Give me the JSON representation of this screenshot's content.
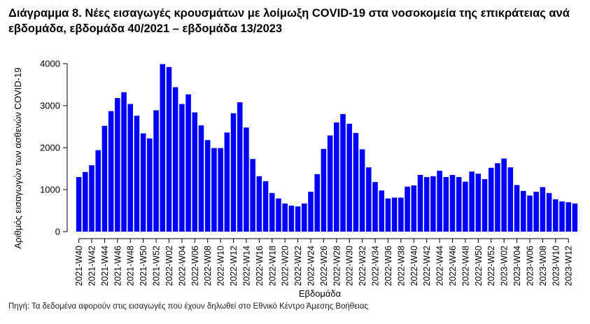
{
  "chart_data": {
    "type": "bar",
    "title": "Διάγραμμα 8. Νέες εισαγωγές κρουσμάτων με λοίμωξη COVID-19 στα νοσοκομεία της επικράτειας ανά εβδομάδα, εβδομάδα 40/2021 – εβδομάδα 13/2023",
    "xlabel": "Εβδομάδα",
    "ylabel": "Αριθμός εισαγωγών των ασθενών COVID-19",
    "ylim": [
      0,
      4000
    ],
    "yticks": [
      0,
      1000,
      2000,
      3000,
      4000
    ],
    "tick_categories": [
      "2021-W40",
      "2021-W42",
      "2021-W44",
      "2021-W46",
      "2021-W48",
      "2021-W50",
      "2021-W52",
      "2022-W02",
      "2022-W04",
      "2022-W06",
      "2022-W08",
      "2022-W10",
      "2022-W12",
      "2022-W14",
      "2022-W16",
      "2022-W18",
      "2022-W20",
      "2022-W22",
      "2022-W24",
      "2022-W26",
      "2022-W28",
      "2022-W30",
      "2022-W32",
      "2022-W34",
      "2022-W36",
      "2022-W38",
      "2022-W40",
      "2022-W42",
      "2022-W44",
      "2022-W46",
      "2022-W48",
      "2022-W50",
      "2022-W52",
      "2023-W02",
      "2023-W04",
      "2023-W06",
      "2023-W08",
      "2023-W10",
      "2023-W12"
    ],
    "values": [
      1300,
      1420,
      1580,
      1940,
      2520,
      2870,
      3180,
      3320,
      3040,
      2760,
      2340,
      2220,
      2890,
      3990,
      3920,
      3440,
      3040,
      3270,
      2840,
      2530,
      2180,
      1990,
      1990,
      2360,
      2820,
      3080,
      2480,
      1730,
      1320,
      1200,
      920,
      790,
      670,
      620,
      600,
      670,
      950,
      1370,
      1970,
      2290,
      2600,
      2800,
      2570,
      2350,
      1960,
      1530,
      1180,
      980,
      790,
      810,
      810,
      1070,
      1100,
      1350,
      1300,
      1320,
      1450,
      1300,
      1350,
      1300,
      1190,
      1430,
      1380,
      1250,
      1520,
      1630,
      1740,
      1530,
      1110,
      970,
      860,
      950,
      1060,
      920,
      770,
      720,
      700,
      670
    ],
    "bar_color": "#0000ff",
    "grid": false,
    "legend": "none"
  },
  "footer": {
    "source": "Πηγή: Τα δεδομένα αφορούν στις εισαγωγές που έχουν δηλωθεί στο Εθνικό Κέντρο Άμεσης Βοήθειας"
  }
}
